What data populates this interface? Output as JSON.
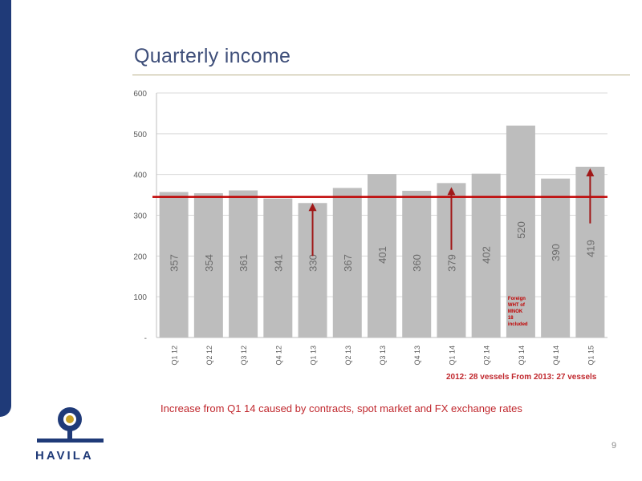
{
  "slide": {
    "title": "Quarterly income",
    "vessels_note": "2012: 28 vessels From 2013: 27 vessels",
    "increase_note": "Increase from Q1 14 caused by contracts, spot market and FX exchange rates",
    "page_number": "9",
    "logo_text": "HAVILA"
  },
  "colors": {
    "bar": "#bdbdbd",
    "bar_label": "#6b6b6b",
    "reference_line": "#c00000",
    "arrow": "#a01818",
    "brand_navy": "#1f3a78",
    "brand_gold": "#c9a227"
  },
  "chart_data": {
    "type": "bar",
    "categories": [
      "Q1 12",
      "Q2 12",
      "Q3 12",
      "Q4 12",
      "Q1 13",
      "Q2 13",
      "Q3 13",
      "Q4 13",
      "Q1 14",
      "Q2 14",
      "Q3 14",
      "Q4 14",
      "Q1 15"
    ],
    "values": [
      357,
      354,
      361,
      341,
      330,
      367,
      401,
      360,
      379,
      402,
      520,
      390,
      419
    ],
    "ytick_labels": [
      "-",
      "100",
      "200",
      "300",
      "400",
      "500",
      "600"
    ],
    "ylim": [
      0,
      600
    ],
    "grid": true,
    "reference_line_value": 345,
    "annotations": [
      {
        "category": "Q3 14",
        "lines": [
          "Foreign",
          "WHT of",
          "MNOK",
          "18",
          "included"
        ]
      }
    ],
    "arrows": [
      {
        "category": "Q1 13",
        "from": 200,
        "to": 330
      },
      {
        "category": "Q1 14",
        "from": 215,
        "to": 369
      },
      {
        "category": "Q1 15",
        "from": 280,
        "to": 415
      }
    ]
  }
}
